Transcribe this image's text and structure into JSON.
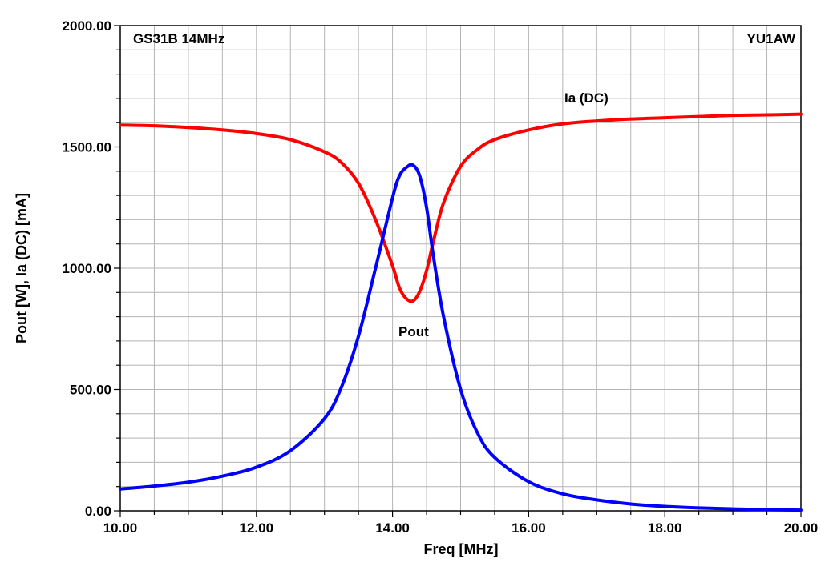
{
  "chart_data": {
    "type": "line",
    "title_left": "GS31B 14MHz",
    "title_right": "YU1AW",
    "xlabel": "Freq [MHz]",
    "ylabel": "Pout [W], Ia (DC) [mA]",
    "xlim": [
      10,
      20
    ],
    "ylim": [
      0,
      2000
    ],
    "x_ticks": [
      10,
      12,
      14,
      16,
      18,
      20
    ],
    "x_tick_labels": [
      "10.00",
      "12.00",
      "14.00",
      "16.00",
      "18.00",
      "20.00"
    ],
    "y_ticks": [
      0,
      500,
      1000,
      1500,
      2000
    ],
    "y_tick_labels": [
      "0.00",
      "500.00",
      "1000.00",
      "1500.00",
      "2000.00"
    ],
    "grid": true,
    "series": [
      {
        "name": "Ia (DC)",
        "color": "#ff0000",
        "x": [
          10.0,
          10.5,
          11.0,
          11.5,
          12.0,
          12.5,
          13.0,
          13.25,
          13.5,
          13.75,
          14.0,
          14.1,
          14.2,
          14.3,
          14.4,
          14.5,
          14.6,
          14.75,
          15.0,
          15.25,
          15.5,
          16.0,
          16.5,
          17.0,
          17.5,
          18.0,
          18.5,
          19.0,
          19.5,
          20.0
        ],
        "values": [
          1590,
          1587,
          1580,
          1570,
          1555,
          1530,
          1480,
          1435,
          1350,
          1200,
          1010,
          920,
          875,
          865,
          905,
          990,
          1110,
          1270,
          1420,
          1490,
          1530,
          1570,
          1595,
          1607,
          1615,
          1620,
          1625,
          1630,
          1632,
          1635
        ]
      },
      {
        "name": "Pout",
        "color": "#0000ff",
        "x": [
          10.0,
          10.5,
          11.0,
          11.5,
          12.0,
          12.5,
          13.0,
          13.25,
          13.5,
          13.75,
          14.0,
          14.1,
          14.2,
          14.3,
          14.4,
          14.5,
          14.6,
          14.75,
          15.0,
          15.25,
          15.5,
          16.0,
          16.5,
          17.0,
          17.5,
          18.0,
          18.5,
          19.0,
          19.5,
          20.0
        ],
        "values": [
          90,
          102,
          118,
          143,
          180,
          248,
          380,
          510,
          720,
          1000,
          1290,
          1380,
          1415,
          1425,
          1380,
          1250,
          1050,
          800,
          500,
          320,
          220,
          120,
          70,
          45,
          28,
          18,
          12,
          8,
          5,
          3
        ]
      }
    ],
    "annotations": [
      "Ia (DC)",
      "Pout"
    ]
  }
}
